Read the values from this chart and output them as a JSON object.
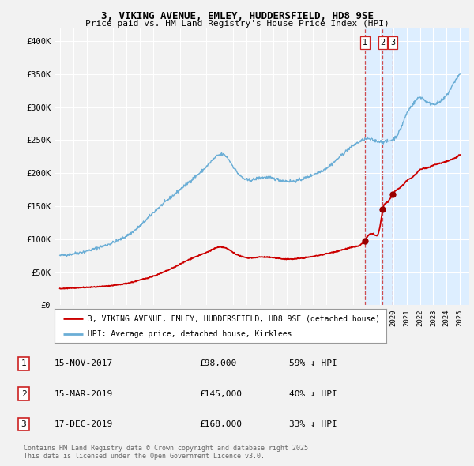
{
  "title1": "3, VIKING AVENUE, EMLEY, HUDDERSFIELD, HD8 9SE",
  "title2": "Price paid vs. HM Land Registry's House Price Index (HPI)",
  "ylabel_ticks": [
    "£0",
    "£50K",
    "£100K",
    "£150K",
    "£200K",
    "£250K",
    "£300K",
    "£350K",
    "£400K"
  ],
  "ytick_vals": [
    0,
    50000,
    100000,
    150000,
    200000,
    250000,
    300000,
    350000,
    400000
  ],
  "ylim": [
    0,
    420000
  ],
  "xlim_start": 1994.6,
  "xlim_end": 2025.7,
  "hpi_color": "#6baed6",
  "price_color": "#cc0000",
  "marker_color": "#990000",
  "dashed_color": "#cc2222",
  "shade_color": "#ddeeff",
  "background_color": "#f2f2f2",
  "grid_color": "#ffffff",
  "transactions": [
    {
      "label": "1",
      "date": "15-NOV-2017",
      "price": 98000,
      "pct": "59%",
      "x": 2017.87
    },
    {
      "label": "2",
      "date": "15-MAR-2019",
      "price": 145000,
      "pct": "40%",
      "x": 2019.21
    },
    {
      "label": "3",
      "date": "17-DEC-2019",
      "price": 168000,
      "pct": "33%",
      "x": 2019.96
    }
  ],
  "legend_line1": "3, VIKING AVENUE, EMLEY, HUDDERSFIELD, HD8 9SE (detached house)",
  "legend_line2": "HPI: Average price, detached house, Kirklees",
  "footnote": "Contains HM Land Registry data © Crown copyright and database right 2025.\nThis data is licensed under the Open Government Licence v3.0.",
  "table_rows": [
    [
      "1",
      "15-NOV-2017",
      "£98,000",
      "59% ↓ HPI"
    ],
    [
      "2",
      "15-MAR-2019",
      "£145,000",
      "40% ↓ HPI"
    ],
    [
      "3",
      "17-DEC-2019",
      "£168,000",
      "33% ↓ HPI"
    ]
  ]
}
